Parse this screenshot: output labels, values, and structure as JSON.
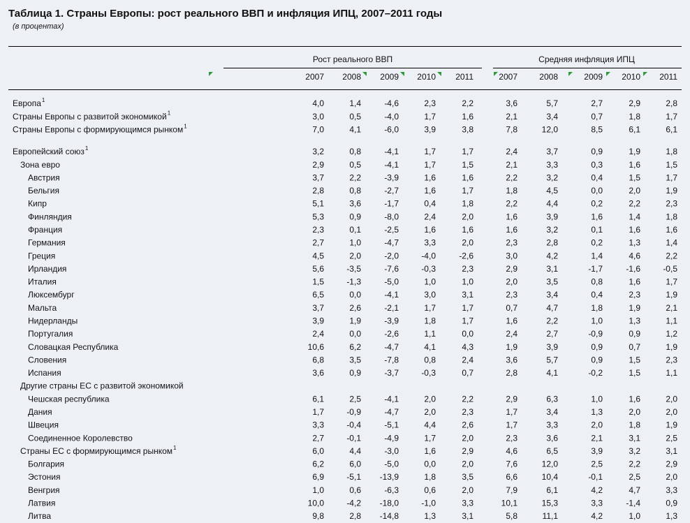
{
  "title": "Таблица 1. Страны Европы: рост реального ВВП и инфляция ИПЦ, 2007–2011 годы",
  "subtitle": "(в процентах)",
  "table": {
    "groups": [
      {
        "name": "Рост реального ВВП",
        "years": [
          "2007",
          "2008",
          "2009",
          "2010",
          "2011"
        ]
      },
      {
        "name": "Средняя инфляция ИПЦ",
        "years": [
          "2007",
          "2008",
          "2009",
          "2010",
          "2011"
        ]
      }
    ],
    "rows": [
      {
        "label": "Европа",
        "note": "1",
        "gdp": [
          "4,0",
          "1,4",
          "-4,6",
          "2,3",
          "2,2"
        ],
        "cpi": [
          "3,6",
          "5,7",
          "2,7",
          "2,9",
          "2,8"
        ]
      },
      {
        "label": "Страны Европы с развитой экономикой",
        "note": "1",
        "gdp": [
          "3,0",
          "0,5",
          "-4,0",
          "1,7",
          "1,6"
        ],
        "cpi": [
          "2,1",
          "3,4",
          "0,7",
          "1,8",
          "1,7"
        ]
      },
      {
        "label": "Страны Европы с формирующимся рынком",
        "note": "1",
        "gdp": [
          "7,0",
          "4,1",
          "-6,0",
          "3,9",
          "3,8"
        ],
        "cpi": [
          "7,8",
          "12,0",
          "8,5",
          "6,1",
          "6,1"
        ]
      },
      {
        "label": "Европейский союз",
        "note": "1",
        "gdp": [
          "3,2",
          "0,8",
          "-4,1",
          "1,7",
          "1,7"
        ],
        "cpi": [
          "2,4",
          "3,7",
          "0,9",
          "1,9",
          "1,8"
        ]
      },
      {
        "label": "Зона евро",
        "gdp": [
          "2,9",
          "0,5",
          "-4,1",
          "1,7",
          "1,5"
        ],
        "cpi": [
          "2,1",
          "3,3",
          "0,3",
          "1,6",
          "1,5"
        ]
      },
      {
        "label": "Австрия",
        "gdp": [
          "3,7",
          "2,2",
          "-3,9",
          "1,6",
          "1,6"
        ],
        "cpi": [
          "2,2",
          "3,2",
          "0,4",
          "1,5",
          "1,7"
        ]
      },
      {
        "label": "Бельгия",
        "gdp": [
          "2,8",
          "0,8",
          "-2,7",
          "1,6",
          "1,7"
        ],
        "cpi": [
          "1,8",
          "4,5",
          "0,0",
          "2,0",
          "1,9"
        ]
      },
      {
        "label": "Кипр",
        "gdp": [
          "5,1",
          "3,6",
          "-1,7",
          "0,4",
          "1,8"
        ],
        "cpi": [
          "2,2",
          "4,4",
          "0,2",
          "2,2",
          "2,3"
        ]
      },
      {
        "label": "Финляндия",
        "gdp": [
          "5,3",
          "0,9",
          "-8,0",
          "2,4",
          "2,0"
        ],
        "cpi": [
          "1,6",
          "3,9",
          "1,6",
          "1,4",
          "1,8"
        ]
      },
      {
        "label": "Франция",
        "gdp": [
          "2,3",
          "0,1",
          "-2,5",
          "1,6",
          "1,6"
        ],
        "cpi": [
          "1,6",
          "3,2",
          "0,1",
          "1,6",
          "1,6"
        ]
      },
      {
        "label": "Германия",
        "gdp": [
          "2,7",
          "1,0",
          "-4,7",
          "3,3",
          "2,0"
        ],
        "cpi": [
          "2,3",
          "2,8",
          "0,2",
          "1,3",
          "1,4"
        ]
      },
      {
        "label": "Греция",
        "gdp": [
          "4,5",
          "2,0",
          "-2,0",
          "-4,0",
          "-2,6"
        ],
        "cpi": [
          "3,0",
          "4,2",
          "1,4",
          "4,6",
          "2,2"
        ]
      },
      {
        "label": "Ирландия",
        "gdp": [
          "5,6",
          "-3,5",
          "-7,6",
          "-0,3",
          "2,3"
        ],
        "cpi": [
          "2,9",
          "3,1",
          "-1,7",
          "-1,6",
          "-0,5"
        ]
      },
      {
        "label": "Италия",
        "gdp": [
          "1,5",
          "-1,3",
          "-5,0",
          "1,0",
          "1,0"
        ],
        "cpi": [
          "2,0",
          "3,5",
          "0,8",
          "1,6",
          "1,7"
        ]
      },
      {
        "label": "Люксембург",
        "gdp": [
          "6,5",
          "0,0",
          "-4,1",
          "3,0",
          "3,1"
        ],
        "cpi": [
          "2,3",
          "3,4",
          "0,4",
          "2,3",
          "1,9"
        ]
      },
      {
        "label": "Мальта",
        "gdp": [
          "3,7",
          "2,6",
          "-2,1",
          "1,7",
          "1,7"
        ],
        "cpi": [
          "0,7",
          "4,7",
          "1,8",
          "1,9",
          "2,1"
        ]
      },
      {
        "label": "Нидерланды",
        "gdp": [
          "3,9",
          "1,9",
          "-3,9",
          "1,8",
          "1,7"
        ],
        "cpi": [
          "1,6",
          "2,2",
          "1,0",
          "1,3",
          "1,1"
        ]
      },
      {
        "label": "Португалия",
        "gdp": [
          "2,4",
          "0,0",
          "-2,6",
          "1,1",
          "0,0"
        ],
        "cpi": [
          "2,4",
          "2,7",
          "-0,9",
          "0,9",
          "1,2"
        ]
      },
      {
        "label": "Словацкая Республика",
        "gdp": [
          "10,6",
          "6,2",
          "-4,7",
          "4,1",
          "4,3"
        ],
        "cpi": [
          "1,9",
          "3,9",
          "0,9",
          "0,7",
          "1,9"
        ]
      },
      {
        "label": "Словения",
        "gdp": [
          "6,8",
          "3,5",
          "-7,8",
          "0,8",
          "2,4"
        ],
        "cpi": [
          "3,6",
          "5,7",
          "0,9",
          "1,5",
          "2,3"
        ]
      },
      {
        "label": "Испания",
        "gdp": [
          "3,6",
          "0,9",
          "-3,7",
          "-0,3",
          "0,7"
        ],
        "cpi": [
          "2,8",
          "4,1",
          "-0,2",
          "1,5",
          "1,1"
        ]
      },
      {
        "label": "Другие страны ЕС с развитой экономикой"
      },
      {
        "label": "Чешская республика",
        "gdp": [
          "6,1",
          "2,5",
          "-4,1",
          "2,0",
          "2,2"
        ],
        "cpi": [
          "2,9",
          "6,3",
          "1,0",
          "1,6",
          "2,0"
        ]
      },
      {
        "label": "Дания",
        "gdp": [
          "1,7",
          "-0,9",
          "-4,7",
          "2,0",
          "2,3"
        ],
        "cpi": [
          "1,7",
          "3,4",
          "1,3",
          "2,0",
          "2,0"
        ]
      },
      {
        "label": "Швеция",
        "gdp": [
          "3,3",
          "-0,4",
          "-5,1",
          "4,4",
          "2,6"
        ],
        "cpi": [
          "1,7",
          "3,3",
          "2,0",
          "1,8",
          "1,9"
        ]
      },
      {
        "label": "Соединенное Королевство",
        "gdp": [
          "2,7",
          "-0,1",
          "-4,9",
          "1,7",
          "2,0"
        ],
        "cpi": [
          "2,3",
          "3,6",
          "2,1",
          "3,1",
          "2,5"
        ]
      },
      {
        "label": "Страны ЕС с формирующимся рынком",
        "note": "1",
        "gdp": [
          "6,0",
          "4,4",
          "-3,0",
          "1,6",
          "2,9"
        ],
        "cpi": [
          "4,6",
          "6,5",
          "3,9",
          "3,2",
          "3,1"
        ]
      },
      {
        "label": "Болгария",
        "gdp": [
          "6,2",
          "6,0",
          "-5,0",
          "0,0",
          "2,0"
        ],
        "cpi": [
          "7,6",
          "12,0",
          "2,5",
          "2,2",
          "2,9"
        ]
      },
      {
        "label": "Эстония",
        "gdp": [
          "6,9",
          "-5,1",
          "-13,9",
          "1,8",
          "3,5"
        ],
        "cpi": [
          "6,6",
          "10,4",
          "-0,1",
          "2,5",
          "2,0"
        ]
      },
      {
        "label": "Венгрия",
        "gdp": [
          "1,0",
          "0,6",
          "-6,3",
          "0,6",
          "2,0"
        ],
        "cpi": [
          "7,9",
          "6,1",
          "4,2",
          "4,7",
          "3,3"
        ]
      },
      {
        "label": "Латвия",
        "gdp": [
          "10,0",
          "-4,2",
          "-18,0",
          "-1,0",
          "3,3"
        ],
        "cpi": [
          "10,1",
          "15,3",
          "3,3",
          "-1,4",
          "0,9"
        ]
      },
      {
        "label": "Литва",
        "gdp": [
          "9,8",
          "2,8",
          "-14,8",
          "1,3",
          "3,1"
        ],
        "cpi": [
          "5,8",
          "11,1",
          "4,2",
          "1,0",
          "1,3"
        ]
      }
    ]
  }
}
